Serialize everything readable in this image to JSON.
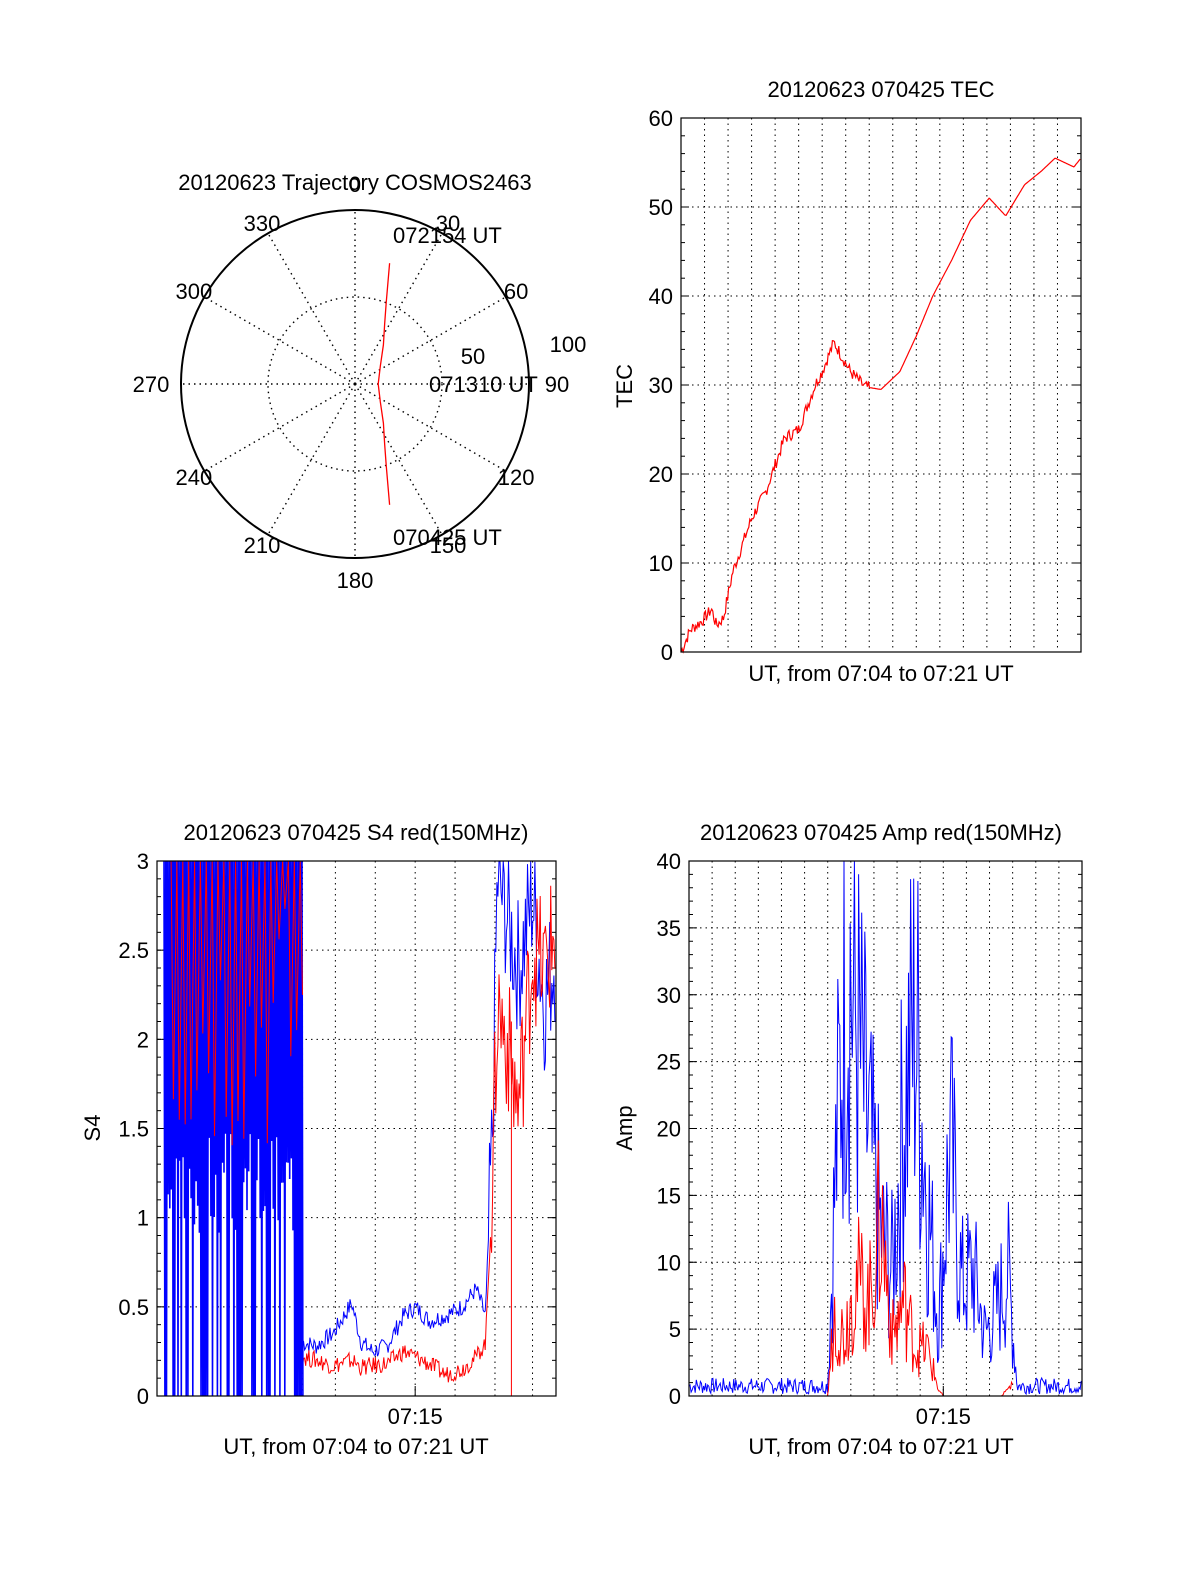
{
  "colors": {
    "red": "#ff0000",
    "blue": "#0000ff",
    "axis": "#000000",
    "grid": "#000000"
  },
  "chart_data": [
    {
      "type": "polar",
      "title": "20120623 Trajectory COSMOS2463",
      "angle_ticks": [
        "0",
        "30",
        "60",
        "90",
        "120",
        "150",
        "180",
        "210",
        "240",
        "270",
        "300",
        "330"
      ],
      "radial_ticks": [
        "50",
        "100"
      ],
      "trajectory_az_el": [
        [
          16,
          25
        ],
        [
          18,
          35
        ],
        [
          21,
          45
        ],
        [
          26,
          55
        ],
        [
          36,
          65
        ],
        [
          55,
          74
        ],
        [
          90,
          78
        ],
        [
          125,
          74
        ],
        [
          144,
          65
        ],
        [
          154,
          55
        ],
        [
          159,
          45
        ],
        [
          162,
          35
        ],
        [
          164,
          25
        ]
      ],
      "annotations": [
        "072154 UT",
        "071310 UT",
        "070425 UT"
      ]
    },
    {
      "type": "line",
      "title": "20120623 070425 TEC",
      "xlabel": "UT, from 07:04 to 07:21 UT",
      "ylabel": "TEC",
      "yticks": [
        "0",
        "10",
        "20",
        "30",
        "40",
        "50",
        "60"
      ],
      "ylim": [
        0,
        60
      ],
      "grid": true,
      "series": [
        {
          "color": "red",
          "x": [
            0,
            0.4,
            0.9,
            1.3,
            1.5,
            1.8,
            2.2,
            2.6,
            3.0,
            3.6,
            4.0,
            4.4,
            5.0,
            5.7,
            6.0,
            6.5,
            7.2,
            7.8,
            8.5,
            9.3,
            10.0,
            10.7,
            11.5,
            12.3,
            13.1,
            13.8,
            14.6,
            15.3,
            15.9,
            16.3,
            16.7,
            17.0
          ],
          "y": [
            0,
            2.5,
            3.5,
            4.8,
            3.0,
            3.8,
            9.0,
            12.0,
            15.0,
            18.0,
            21.0,
            24.0,
            25.0,
            30.0,
            31.5,
            34.8,
            31.5,
            29.8,
            29.5,
            31.5,
            35.5,
            40.0,
            44.0,
            48.5,
            51.0,
            49.0,
            52.5,
            54.0,
            55.5,
            55.0,
            54.5,
            55.5
          ]
        }
      ]
    },
    {
      "type": "line",
      "title": "20120623 070425 S4 red(150MHz)",
      "xlabel": "UT, from 07:04 to 07:21 UT",
      "ylabel": "S4",
      "xticks": [
        "07:15"
      ],
      "yticks": [
        "0",
        "0.5",
        "1",
        "1.5",
        "2",
        "2.5",
        "3"
      ],
      "ylim": [
        0,
        3
      ],
      "grid": true,
      "series": [
        {
          "color": "blue",
          "x": [
            6.2,
            6.8,
            7.5,
            8.3,
            8.7,
            9.2,
            9.8,
            10.5,
            11.0,
            11.6,
            12.3,
            13.0,
            13.6,
            14.0,
            14.3,
            14.5,
            14.9,
            15.4,
            16.0,
            16.5,
            17.0
          ],
          "y": [
            0.3,
            0.28,
            0.35,
            0.52,
            0.3,
            0.25,
            0.28,
            0.45,
            0.5,
            0.42,
            0.45,
            0.5,
            0.6,
            0.45,
            1.5,
            2.9,
            2.7,
            2.4,
            2.8,
            2.2,
            2.5
          ]
        },
        {
          "color": "red",
          "x": [
            6.2,
            6.8,
            7.5,
            8.3,
            8.7,
            9.2,
            9.8,
            10.5,
            11.0,
            11.6,
            12.3,
            13.0,
            13.6,
            14.0,
            14.3,
            14.5,
            14.9,
            15.4,
            16.0,
            16.5,
            17.0
          ],
          "y": [
            0.22,
            0.2,
            0.17,
            0.2,
            0.16,
            0.17,
            0.18,
            0.25,
            0.22,
            0.18,
            0.12,
            0.15,
            0.22,
            0.3,
            1.2,
            2.2,
            2.0,
            1.6,
            2.5,
            2.4,
            2.6
          ]
        }
      ]
    },
    {
      "type": "line",
      "title": "20120623 070425 Amp red(150MHz)",
      "xlabel": "UT, from 07:04 to 07:21 UT",
      "ylabel": "Amp",
      "xticks": [
        "07:15"
      ],
      "yticks": [
        "0",
        "5",
        "10",
        "15",
        "20",
        "25",
        "30",
        "35",
        "40"
      ],
      "ylim": [
        0,
        40
      ],
      "grid": true,
      "series": [
        {
          "color": "blue",
          "x": [
            0,
            2,
            4,
            6,
            6.3,
            6.8,
            7.3,
            7.8,
            8.3,
            8.8,
            9.3,
            9.8,
            10.3,
            10.8,
            11.3,
            11.8,
            12.3,
            12.8,
            13.3,
            13.8,
            14.2,
            14.6,
            15.2,
            16,
            17
          ],
          "y": [
            1,
            1,
            1,
            1,
            16,
            36,
            28,
            20,
            13,
            10,
            23,
            30,
            16,
            6,
            20,
            9,
            10,
            5,
            7,
            10,
            1,
            1,
            1,
            1,
            1
          ]
        },
        {
          "color": "red",
          "x": [
            0,
            6,
            6.3,
            6.7,
            7.2,
            7.8,
            8.3,
            8.8,
            9.3,
            9.8,
            10.3,
            10.8,
            11,
            13.5,
            14
          ],
          "y": [
            0,
            0,
            7,
            5,
            10,
            8,
            15,
            5,
            8,
            4,
            4,
            0.5,
            0,
            0,
            1
          ]
        }
      ]
    }
  ]
}
